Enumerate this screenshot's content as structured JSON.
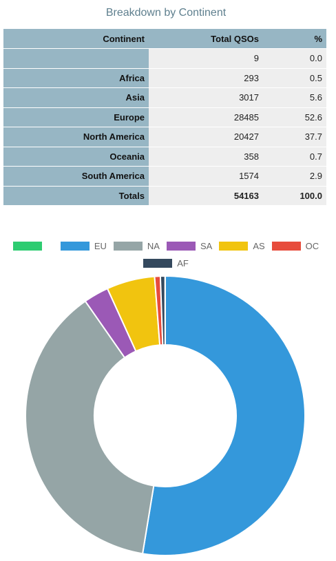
{
  "title": "Breakdown by Continent",
  "table": {
    "headers": [
      "Continent",
      "Total QSOs",
      "%"
    ],
    "rows": [
      {
        "continent": "",
        "total": "9",
        "pct": "0.0"
      },
      {
        "continent": "Africa",
        "total": "293",
        "pct": "0.5"
      },
      {
        "continent": "Asia",
        "total": "3017",
        "pct": "5.6"
      },
      {
        "continent": "Europe",
        "total": "28485",
        "pct": "52.6"
      },
      {
        "continent": "North America",
        "total": "20427",
        "pct": "37.7"
      },
      {
        "continent": "Oceania",
        "total": "358",
        "pct": "0.7"
      },
      {
        "continent": "South America",
        "total": "1574",
        "pct": "2.9"
      }
    ],
    "totals": {
      "label": "Totals",
      "total": "54163",
      "pct": "100.0"
    }
  },
  "chart_data": {
    "type": "pie",
    "variant": "doughnut",
    "legend_position": "top",
    "slices": [
      {
        "label": "EU",
        "value": 28485,
        "color": "#3498db"
      },
      {
        "label": "NA",
        "value": 20427,
        "color": "#95a5a6"
      },
      {
        "label": "SA",
        "value": 1574,
        "color": "#9b59b6"
      },
      {
        "label": "AS",
        "value": 3017,
        "color": "#f1c40f"
      },
      {
        "label": "OC",
        "value": 358,
        "color": "#e74c3c"
      },
      {
        "label": "AF",
        "value": 293,
        "color": "#34495e"
      },
      {
        "label": "",
        "value": 9,
        "color": "#2ecc71"
      }
    ],
    "legend_order": [
      "",
      "EU",
      "NA",
      "SA",
      "AS",
      "OC",
      "AF"
    ]
  }
}
